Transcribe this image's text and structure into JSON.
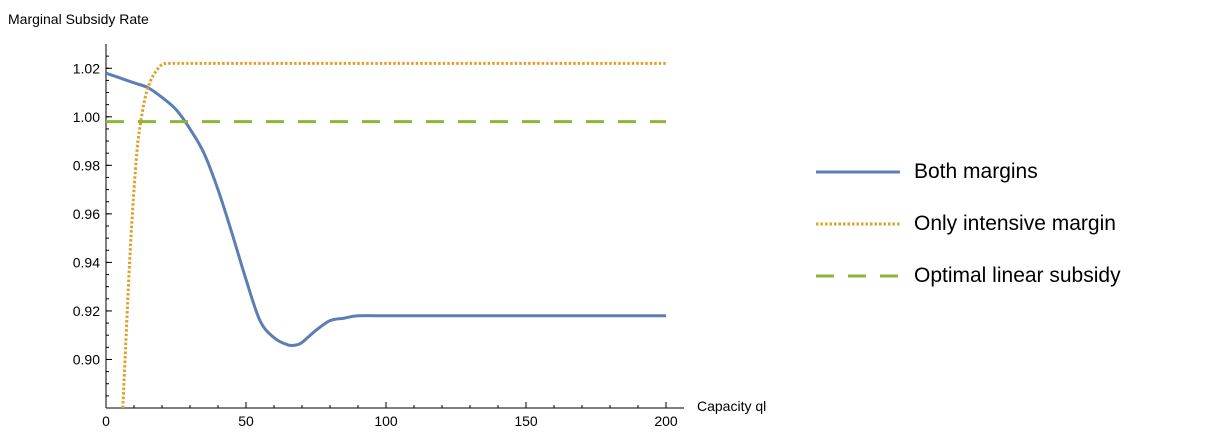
{
  "chart_data": {
    "type": "line",
    "title": "",
    "ylabel": "Marginal Subsidy Rate",
    "xlabel": "Capacity ql",
    "xlim": [
      0,
      200
    ],
    "ylim": [
      0.88,
      1.03
    ],
    "xticks": [
      0,
      50,
      100,
      150,
      200
    ],
    "xtick_labels": [
      "0",
      "50",
      "100",
      "150",
      "200"
    ],
    "yticks": [
      0.9,
      0.92,
      0.94,
      0.96,
      0.98,
      1.0,
      1.02
    ],
    "ytick_labels": [
      "0.90",
      "0.92",
      "0.94",
      "0.96",
      "0.98",
      "1.00",
      "1.02"
    ],
    "legend_position": "right",
    "grid": false,
    "series": [
      {
        "name": "Both margins",
        "color": "#5b7fb5",
        "style": "solid",
        "x": [
          0,
          5,
          10,
          15,
          20,
          25,
          30,
          35,
          40,
          45,
          50,
          55,
          60,
          65,
          68,
          70,
          75,
          80,
          85,
          90,
          100,
          110,
          150,
          200
        ],
        "y": [
          1.018,
          1.016,
          1.014,
          1.012,
          1.008,
          1.003,
          0.995,
          0.985,
          0.97,
          0.952,
          0.933,
          0.916,
          0.909,
          0.906,
          0.906,
          0.907,
          0.912,
          0.916,
          0.917,
          0.918,
          0.918,
          0.918,
          0.918,
          0.918
        ]
      },
      {
        "name": "Only intensive margin",
        "color": "#e0a02b",
        "style": "dotted",
        "x": [
          6,
          7,
          8,
          9,
          10,
          11,
          12,
          14,
          16,
          18,
          20,
          22,
          25,
          30,
          50,
          100,
          150,
          200
        ],
        "y": [
          0.88,
          0.905,
          0.93,
          0.952,
          0.97,
          0.985,
          0.995,
          1.008,
          1.015,
          1.019,
          1.0215,
          1.022,
          1.022,
          1.022,
          1.022,
          1.022,
          1.022,
          1.022
        ]
      },
      {
        "name": "Optimal linear subsidy",
        "color": "#8db43c",
        "style": "dashed",
        "x": [
          0,
          200
        ],
        "y": [
          0.998,
          0.998
        ]
      }
    ]
  }
}
